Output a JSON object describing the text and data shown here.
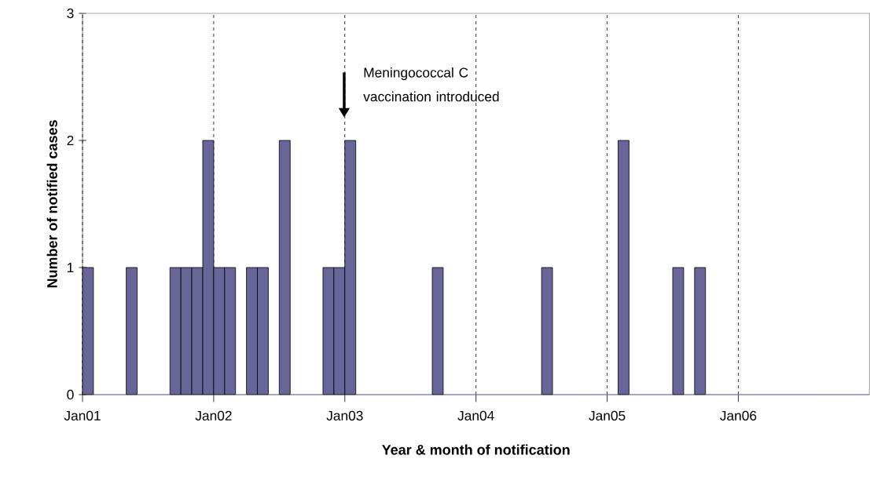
{
  "chart_data": {
    "type": "bar",
    "xlabel": "Year & month of notification",
    "ylabel": "Number of notified cases",
    "categories": [
      "Jan01",
      null,
      null,
      null,
      null,
      null,
      null,
      null,
      null,
      null,
      null,
      null,
      "Jan02",
      null,
      null,
      null,
      null,
      null,
      null,
      null,
      null,
      null,
      null,
      null,
      "Jan03",
      null,
      null,
      null,
      null,
      null,
      null,
      null,
      null,
      null,
      null,
      null,
      "Jan04",
      null,
      null,
      null,
      null,
      null,
      null,
      null,
      null,
      null,
      null,
      null,
      "Jan05",
      null,
      null,
      null,
      null,
      null,
      null,
      null,
      null,
      null,
      null,
      null,
      "Jan06",
      null,
      null,
      null,
      null,
      null,
      null,
      null,
      null,
      null,
      null,
      null
    ],
    "values": [
      1,
      0,
      0,
      0,
      1,
      0,
      0,
      0,
      1,
      1,
      1,
      2,
      1,
      1,
      0,
      1,
      1,
      0,
      2,
      0,
      0,
      0,
      1,
      1,
      2,
      0,
      0,
      0,
      0,
      0,
      0,
      0,
      1,
      0,
      0,
      0,
      0,
      0,
      0,
      0,
      0,
      0,
      1,
      0,
      0,
      0,
      0,
      0,
      0,
      2,
      0,
      0,
      0,
      0,
      1,
      0,
      1,
      0,
      0,
      0,
      0,
      0,
      0,
      0,
      0,
      0,
      0,
      0,
      0,
      0,
      0,
      0
    ],
    "color": "#666699",
    "ylim": [
      0,
      3
    ],
    "yticks": [
      0,
      1,
      2,
      3
    ],
    "grid": "x",
    "annotations": [
      "Meningococcal C vaccination introduced"
    ]
  }
}
